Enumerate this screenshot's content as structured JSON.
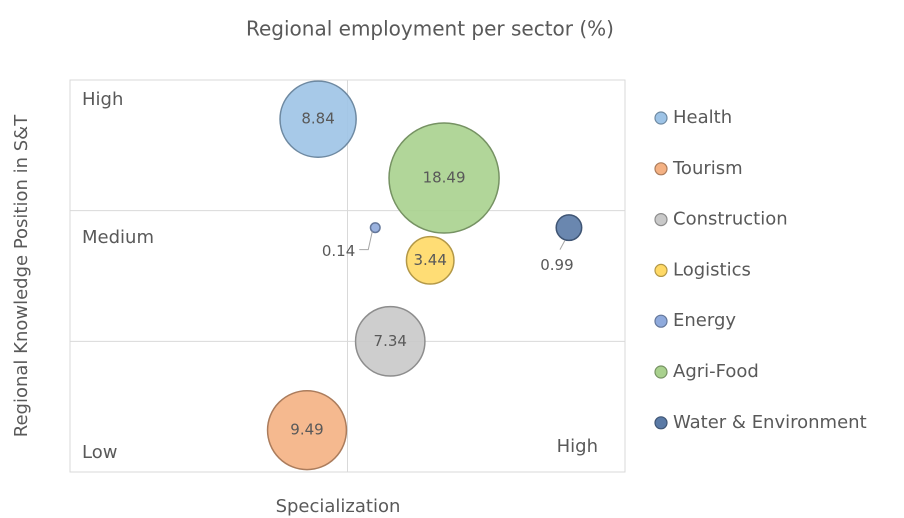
{
  "chart_data": {
    "type": "bubble",
    "title": "Regional employment per sector (%)",
    "x_label": "Specialization",
    "y_label": "Regional Knowledge Position in S&T",
    "xlim": [
      0,
      10
    ],
    "ylim": [
      0,
      3
    ],
    "xticks": [
      5
    ],
    "yticks": [
      1,
      2
    ],
    "grid": true,
    "annotations": [
      "High",
      "Medium",
      "Low",
      "High"
    ],
    "legend": "right",
    "series": [
      {
        "name": "Health",
        "color": "#9dc3e6",
        "x": [
          4.47
        ],
        "y": [
          2.7
        ],
        "size": [
          8.84
        ]
      },
      {
        "name": "Tourism",
        "color": "#f4b183",
        "x": [
          4.27
        ],
        "y": [
          0.32
        ],
        "size": [
          9.49
        ]
      },
      {
        "name": "Construction",
        "color": "#c9c9c9",
        "x": [
          5.77
        ],
        "y": [
          1.0
        ],
        "size": [
          7.34
        ]
      },
      {
        "name": "Logistics",
        "color": "#ffd966",
        "x": [
          6.49
        ],
        "y": [
          1.62
        ],
        "size": [
          3.44
        ]
      },
      {
        "name": "Energy",
        "color": "#8faadc",
        "x": [
          5.5
        ],
        "y": [
          1.87
        ],
        "size": [
          0.14
        ]
      },
      {
        "name": "Agri-Food",
        "color": "#a9d18e",
        "x": [
          6.74
        ],
        "y": [
          2.25
        ],
        "size": [
          18.49
        ]
      },
      {
        "name": "Water & Environment",
        "color": "#5a7aa6",
        "x": [
          8.99
        ],
        "y": [
          1.87
        ],
        "size": [
          0.99
        ]
      }
    ]
  }
}
